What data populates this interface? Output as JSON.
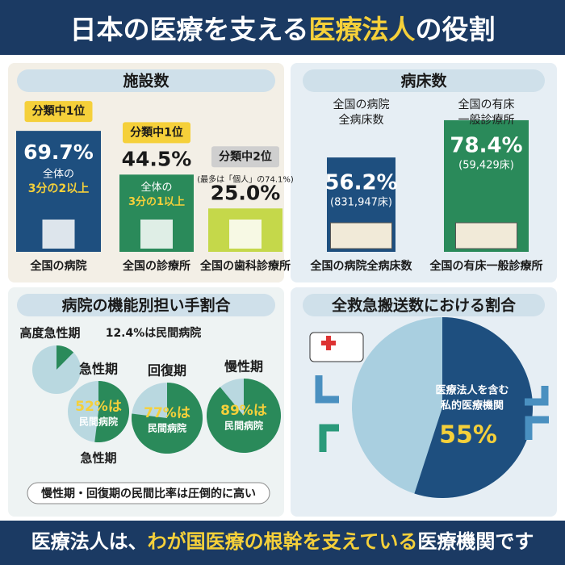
{
  "header": {
    "title_parts": [
      "日本の医療を支える",
      "医療法人",
      "の役割"
    ]
  },
  "facilities": {
    "heading": "施設数",
    "items": [
      {
        "badge": "分類中1位",
        "value": 69.7,
        "value_label": "69.7%",
        "note": [
          "全体の",
          "3分の2以上"
        ],
        "label": "全国の病院"
      },
      {
        "badge": "分類中1位",
        "value": 44.5,
        "value_label": "44.5%",
        "note": [
          "全体の",
          "3分の1以上"
        ],
        "label": "全国の診療所"
      },
      {
        "badge": "分類中2位",
        "sub": "(最多は「個人」の74.1%)",
        "value": 25.0,
        "value_label": "25.0%",
        "label": "全国の歯科診療所"
      }
    ]
  },
  "beds": {
    "heading": "病床数",
    "items": [
      {
        "caption": [
          "全国の病院",
          "全病床数"
        ],
        "value": 56.2,
        "value_label": "56.2%",
        "count": "(831,947床)",
        "label": "全国の病院全病床数"
      },
      {
        "caption": [
          "全国の有床",
          "一般診療所"
        ],
        "value": 78.4,
        "value_label": "78.4%",
        "count": "(59,429床)",
        "label": "全国の有床一般診療所"
      }
    ]
  },
  "functions": {
    "heading": "病院の機能別担い手割合",
    "pies": [
      {
        "label": "高度急性期",
        "value": 12.4,
        "value_label": "12.4%は民間病院"
      },
      {
        "label": "急性期",
        "value": 52,
        "value_label": "52%は",
        "note": "民間病院"
      },
      {
        "label": "回復期",
        "value": 77,
        "value_label": "77%は",
        "note": "民間病院"
      },
      {
        "label": "慢性期",
        "value": 89,
        "value_label": "89%は",
        "note": "民間病院"
      }
    ],
    "extra_label": "急性期",
    "caption": "慢性期・回復期の民間比率は圧倒的に高い"
  },
  "emergency": {
    "heading": "全救急搬送数における割合",
    "pie_text": [
      "医療法人を含む",
      "私的医療機関"
    ],
    "value": 55,
    "value_label": "55%"
  },
  "footer": {
    "parts": [
      "医療法人は、",
      "わが国医療の根幹を支えている",
      "医療機関です"
    ]
  }
}
